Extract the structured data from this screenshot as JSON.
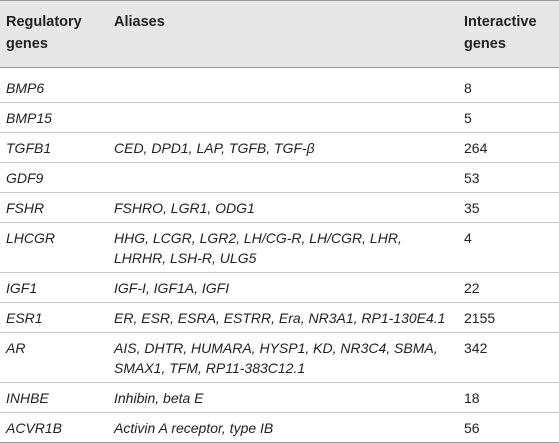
{
  "table": {
    "headers": {
      "regulatory": "Regulatory genes",
      "aliases": "Aliases",
      "interactive": "Interactive genes"
    },
    "rows": [
      {
        "gene": "BMP6",
        "aliases": "",
        "count": "8"
      },
      {
        "gene": "BMP15",
        "aliases": "",
        "count": "5"
      },
      {
        "gene": "TGFB1",
        "aliases": "CED, DPD1, LAP, TGFB, TGF-β",
        "count": "264"
      },
      {
        "gene": "GDF9",
        "aliases": "",
        "count": "53"
      },
      {
        "gene": "FSHR",
        "aliases": "FSHRO, LGR1, ODG1",
        "count": "35"
      },
      {
        "gene": "LHCGR",
        "aliases": "HHG, LCGR, LGR2, LH/CG-R, LH/CGR, LHR, LHRHR, LSH-R, ULG5",
        "count": "4"
      },
      {
        "gene": "IGF1",
        "aliases": "IGF-I, IGF1A, IGFI",
        "count": "22"
      },
      {
        "gene": "ESR1",
        "aliases": "ER, ESR, ESRA, ESTRR, Era, NR3A1, RP1-130E4.1",
        "count": "2155"
      },
      {
        "gene": "AR",
        "aliases": "AIS, DHTR, HUMARA, HYSP1, KD, NR3C4, SBMA, SMAX1, TFM, RP11-383C12.1",
        "count": "342"
      },
      {
        "gene": "INHBE",
        "aliases": "Inhibin, beta E",
        "count": "18"
      },
      {
        "gene": "ACVR1B",
        "aliases": "Activin A receptor, type IB",
        "count": "56"
      }
    ]
  }
}
